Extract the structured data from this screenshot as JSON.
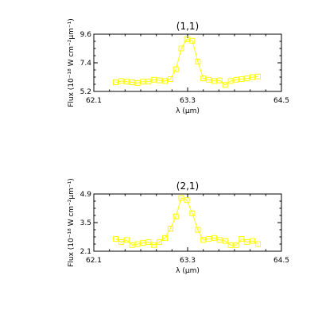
{
  "chart_data": [
    {
      "type": "line",
      "title": "(1,1)",
      "xlabel": "λ (μm)",
      "ylabel": "Flux (10⁻¹⁸ W cm⁻²μm⁻¹)",
      "xlim": [
        62.1,
        64.5
      ],
      "ylim": [
        5.2,
        9.6
      ],
      "xticks": [
        "62.1",
        "63.3",
        "64.5"
      ],
      "yticks": [
        "5.2",
        "7.4",
        "9.6"
      ],
      "x": [
        62.38,
        62.45,
        62.52,
        62.59,
        62.66,
        62.73,
        62.8,
        62.87,
        62.94,
        63.01,
        63.08,
        63.15,
        63.22,
        63.29,
        63.36,
        63.43,
        63.5,
        63.57,
        63.64,
        63.71,
        63.78,
        63.85,
        63.92,
        63.99,
        64.06,
        64.13,
        64.2
      ],
      "values": [
        5.9,
        6.0,
        5.95,
        5.9,
        5.85,
        5.95,
        5.95,
        6.1,
        6.05,
        6.0,
        6.15,
        6.9,
        8.5,
        9.2,
        9.1,
        7.5,
        6.2,
        6.1,
        6.0,
        6.05,
        5.7,
        6.0,
        6.1,
        6.15,
        6.2,
        6.3,
        6.35
      ],
      "color": "#ffff00",
      "marker": "square"
    },
    {
      "type": "line",
      "title": "(2,1)",
      "xlabel": "λ (μm)",
      "ylabel": "Flux (10⁻¹⁸ W cm⁻²μm⁻¹)",
      "xlim": [
        62.1,
        64.5
      ],
      "ylim": [
        2.1,
        4.9
      ],
      "xticks": [
        "62.1",
        "63.3",
        "64.5"
      ],
      "yticks": [
        "2.1",
        "3.5",
        "4.9"
      ],
      "x": [
        62.38,
        62.45,
        62.52,
        62.59,
        62.66,
        62.73,
        62.8,
        62.87,
        62.94,
        63.01,
        63.08,
        63.15,
        63.22,
        63.29,
        63.36,
        63.43,
        63.5,
        63.57,
        63.64,
        63.71,
        63.78,
        63.85,
        63.92,
        63.99,
        64.06,
        64.13,
        64.2
      ],
      "values": [
        2.7,
        2.55,
        2.65,
        2.4,
        2.45,
        2.5,
        2.55,
        2.4,
        2.55,
        2.75,
        3.2,
        3.8,
        4.7,
        4.6,
        3.95,
        3.15,
        2.65,
        2.7,
        2.75,
        2.65,
        2.6,
        2.4,
        2.4,
        2.7,
        2.55,
        2.6,
        2.45
      ],
      "color": "#ffff00",
      "marker": "square"
    }
  ]
}
